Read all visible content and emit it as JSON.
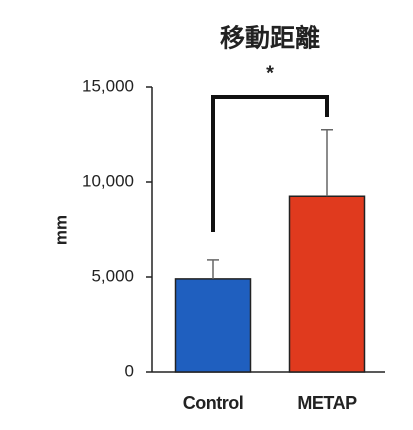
{
  "chart_data": {
    "type": "bar",
    "title": "移動距離",
    "ylabel": "mm",
    "annotation": "*",
    "categories": [
      "Control",
      "METAP"
    ],
    "values": [
      4900,
      9250
    ],
    "errors": [
      1000,
      3500
    ],
    "colors": [
      "#1f5fbf",
      "#e03a1e"
    ],
    "ylim": [
      0,
      15000
    ],
    "yticks": [
      0,
      {
        "value": 5000,
        "label": "5,000"
      },
      {
        "value": 10000,
        "label": "10,000"
      },
      {
        "value": 15000,
        "label": "15,000"
      }
    ]
  }
}
